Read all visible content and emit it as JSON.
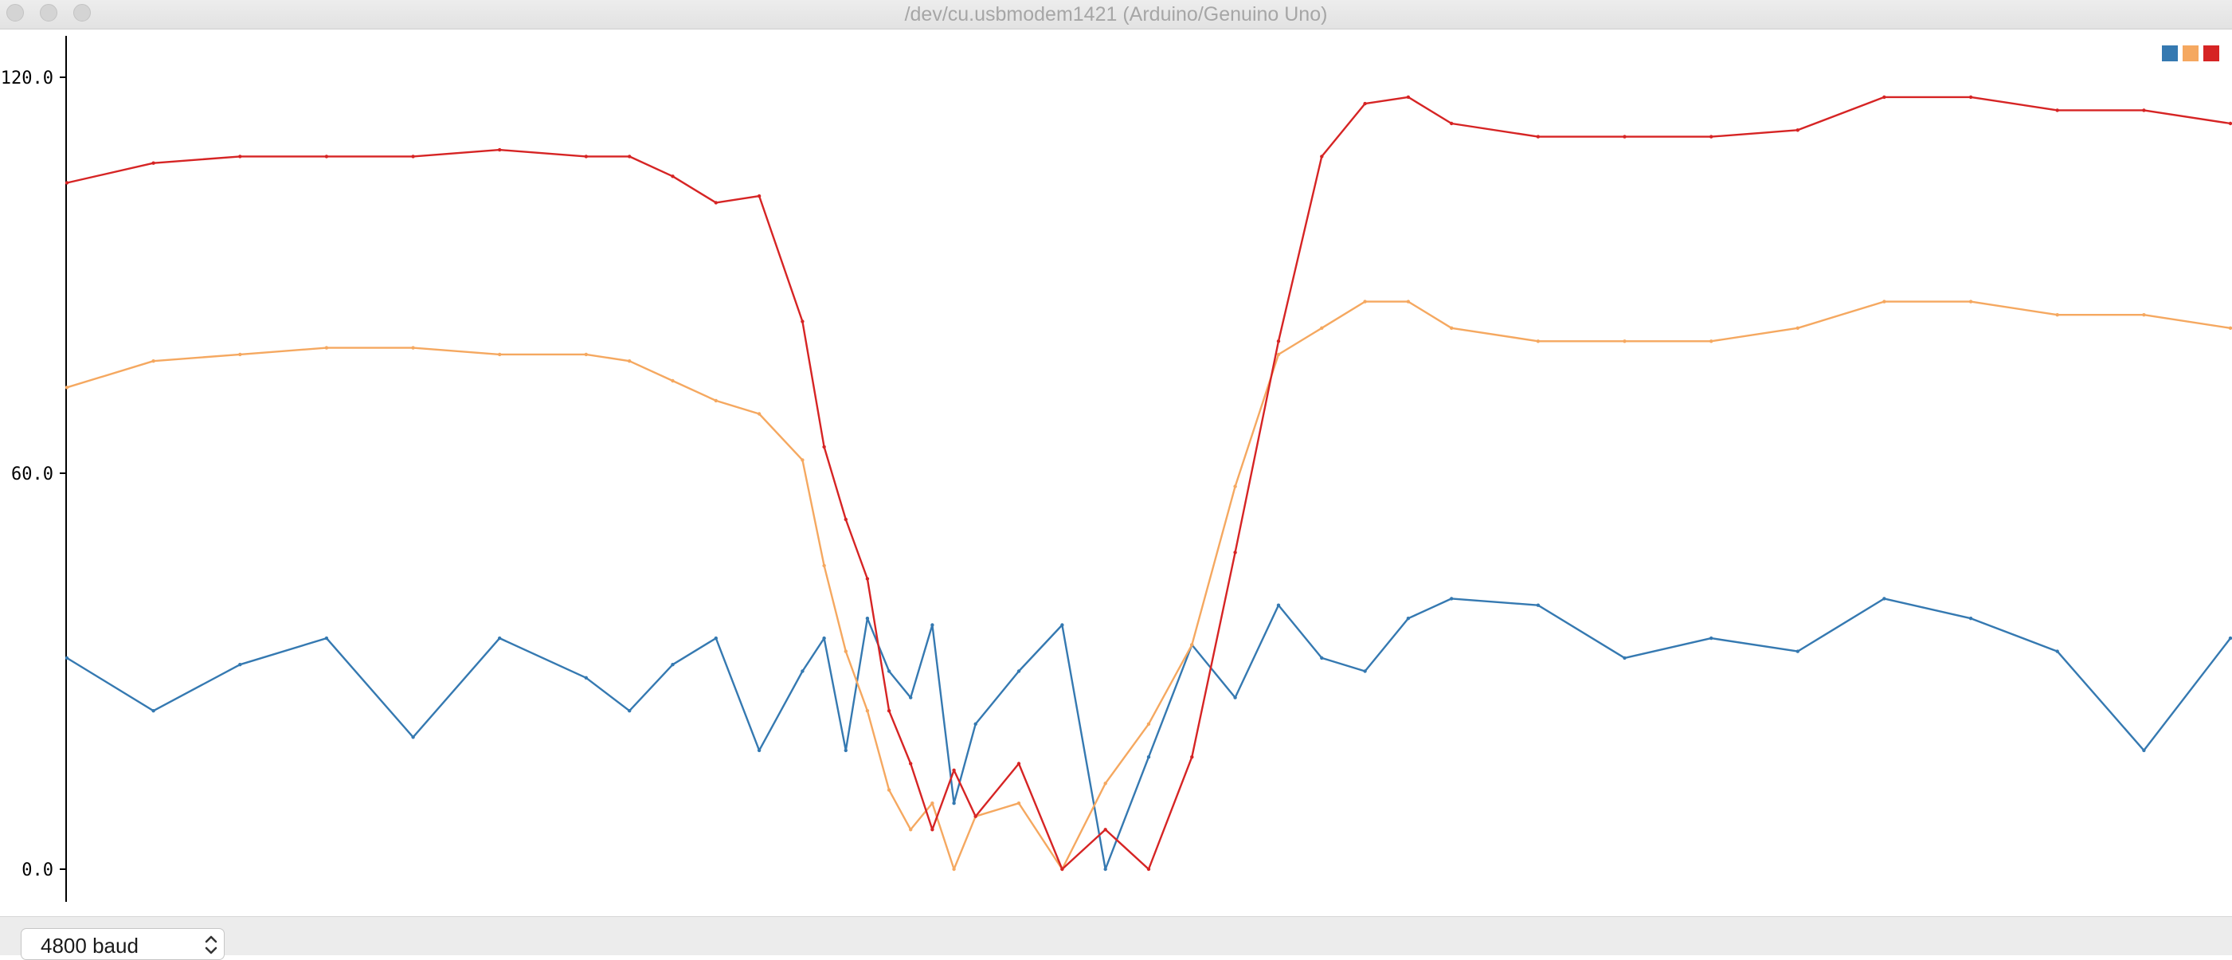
{
  "window": {
    "title": "/dev/cu.usbmodem1421 (Arduino/Genuino Uno)"
  },
  "footer": {
    "baud_label": "4800 baud"
  },
  "chart_data": {
    "type": "line",
    "title": "",
    "xlabel": "",
    "ylabel": "",
    "ylim": [
      -5,
      125
    ],
    "xlim": [
      0,
      500
    ],
    "yticks": [
      {
        "value": 0,
        "label": "0.0"
      },
      {
        "value": 60,
        "label": "60.0"
      },
      {
        "value": 120,
        "label": "120.0"
      }
    ],
    "grid": false,
    "legend": "top-right",
    "x": [
      0,
      20,
      40,
      60,
      80,
      100,
      120,
      130,
      140,
      150,
      160,
      170,
      175,
      180,
      185,
      190,
      195,
      200,
      205,
      210,
      220,
      230,
      240,
      250,
      260,
      270,
      280,
      290,
      300,
      310,
      320,
      340,
      360,
      380,
      400,
      420,
      440,
      460,
      480,
      500
    ],
    "series": [
      {
        "color": "#3579b1",
        "values": [
          32,
          24,
          31,
          35,
          20,
          35,
          29,
          24,
          31,
          35,
          18,
          30,
          35,
          18,
          38,
          30,
          26,
          37,
          10,
          22,
          30,
          37,
          0,
          17,
          34,
          26,
          40,
          32,
          30,
          38,
          41,
          40,
          32,
          35,
          33,
          41,
          38,
          33,
          18,
          35
        ]
      },
      {
        "color": "#f5a860",
        "values": [
          73,
          77,
          78,
          79,
          79,
          78,
          78,
          77,
          74,
          71,
          69,
          62,
          46,
          33,
          24,
          12,
          6,
          10,
          0,
          8,
          10,
          0,
          13,
          22,
          34,
          58,
          78,
          82,
          86,
          86,
          82,
          80,
          80,
          80,
          82,
          86,
          86,
          84,
          84,
          82
        ]
      },
      {
        "color": "#d62424",
        "values": [
          104,
          107,
          108,
          108,
          108,
          109,
          108,
          108,
          105,
          101,
          102,
          83,
          64,
          53,
          44,
          24,
          16,
          6,
          15,
          8,
          16,
          0,
          6,
          0,
          17,
          48,
          80,
          108,
          116,
          117,
          113,
          111,
          111,
          111,
          112,
          117,
          117,
          115,
          115,
          113
        ]
      }
    ]
  }
}
